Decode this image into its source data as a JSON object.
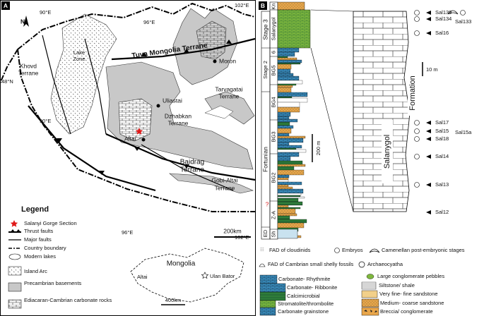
{
  "map": {
    "panel_label": "A",
    "north": "N",
    "coordinates": {
      "top_left_lon": "90°E",
      "top_mid_lon": "96°E",
      "top_right_lon": "102°E",
      "left_lat": "48°N",
      "left_lon": "90°E",
      "bottom_lon": "96°E",
      "bottom_right_lon": "102°E"
    },
    "terranes": [
      {
        "lines": [
          "Khovd",
          "Terrane"
        ]
      },
      {
        "lines": [
          "Lake",
          "Zone"
        ]
      },
      {
        "lines": [
          "Tuva Mongolia Terrane"
        ]
      },
      {
        "lines": [
          "Tarvagatai",
          "Terrane"
        ]
      },
      {
        "lines": [
          "Dzhabkan",
          "Terrane"
        ]
      },
      {
        "lines": [
          "Baidrag",
          "Terrane"
        ]
      },
      {
        "lines": [
          "Gobi-Altai",
          "Terrane"
        ]
      }
    ],
    "towns": [
      "Moron",
      "Uliastai",
      "Altai"
    ],
    "scale_bar": "200km",
    "legend": {
      "title": "Legend",
      "items": [
        "Salanyi Gorge Section",
        "Thrust faults",
        "Major faults",
        "Country boundary",
        "Modern lakes",
        "Island Arc",
        "Precambrian basements",
        "Ediacaran-Cambrian carbonate rocks"
      ]
    },
    "inset": {
      "country": "Mongolia",
      "city": "Altai",
      "capital": "Ulan Bator",
      "scale_bar": "400km"
    }
  },
  "section": {
    "panel_label": "B",
    "stages": [
      "Stage 3",
      "Stage 2",
      "Fortunian",
      "ED"
    ],
    "units": [
      "Kn",
      "Salanygol",
      "6",
      "BG5",
      "BG4",
      "BG3",
      "BG2",
      "Z-A",
      "Sh"
    ],
    "uncertain": "?",
    "column_scale": "200 m",
    "formation": [
      "Salanygol",
      "Formation"
    ],
    "log_scale": "10 m",
    "samples": [
      "Sal139",
      "Sal134",
      "Sal133",
      "Sal16",
      "Sal17",
      "Sal15",
      "Sal15a",
      "Sal18",
      "Sal14",
      "Sal13",
      "Sal12"
    ],
    "fossil_legend": [
      "FAD of cloudinids",
      "Embryos",
      "Camenellan post-embryonic stages",
      "FAD of Cambrian small shelly fossils",
      "Archaeocyatha"
    ],
    "lithology_legend": [
      "Carbonate- Rhythmite",
      "Carbonate- Ribbonite",
      "Calcimicrobial",
      "Stromatolite/thrombolite",
      "Carbonate grainstone",
      "Large conglomerate pebbles",
      "Siltstone/ shale",
      "Very fine- fine sandstone",
      "Medium- coarse sandstone",
      "Breccia/ conglomerate"
    ]
  }
}
